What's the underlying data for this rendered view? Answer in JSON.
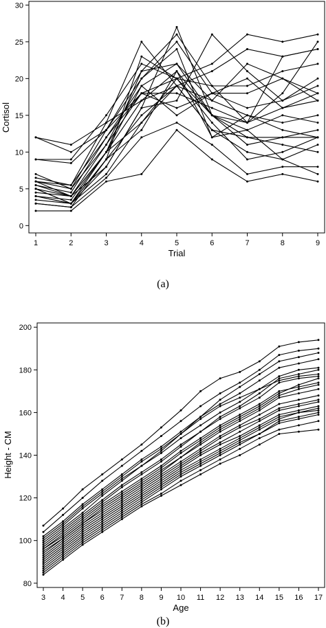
{
  "chart_data": [
    {
      "type": "line",
      "panel_label": "(a)",
      "xlabel": "Trial",
      "ylabel": "Cortisol",
      "xlim": [
        1,
        9
      ],
      "ylim": [
        -1,
        30.5
      ],
      "x": [
        1,
        2,
        3,
        4,
        5,
        6,
        7,
        8,
        9
      ],
      "xticks": [
        1,
        2,
        3,
        4,
        5,
        6,
        7,
        8,
        9
      ],
      "yticks": [
        0,
        5,
        10,
        15,
        20,
        25,
        30
      ],
      "grid": false,
      "legend": "none",
      "series": [
        {
          "values": [
            2,
            2,
            6,
            7,
            13,
            9,
            6,
            7,
            6
          ]
        },
        {
          "values": [
            3,
            2.5,
            6.5,
            12,
            14,
            11,
            7,
            8,
            8
          ]
        },
        {
          "values": [
            3.5,
            3,
            7,
            14,
            20,
            14,
            9,
            10,
            12
          ]
        },
        {
          "values": [
            4,
            3,
            9,
            15,
            19,
            13,
            10,
            9,
            11
          ]
        },
        {
          "values": [
            4,
            3.5,
            10,
            17,
            21,
            15,
            12,
            12,
            12
          ]
        },
        {
          "values": [
            5,
            4,
            11,
            18,
            18,
            16,
            14,
            16,
            18
          ]
        },
        {
          "values": [
            5.5,
            4.5,
            12,
            19,
            22,
            17,
            15,
            14,
            15
          ]
        },
        {
          "values": [
            6,
            5,
            13,
            20,
            25,
            18,
            16,
            17,
            19
          ]
        },
        {
          "values": [
            5,
            3,
            8,
            16,
            27,
            15,
            14,
            23,
            24
          ]
        },
        {
          "values": [
            6.5,
            5.5,
            14,
            25,
            19,
            13,
            12,
            11,
            10
          ]
        },
        {
          "values": [
            4.5,
            4,
            10,
            21,
            26,
            19,
            14,
            18,
            25
          ]
        },
        {
          "values": [
            3,
            2.5,
            9,
            23,
            20,
            22,
            26,
            25,
            26
          ]
        },
        {
          "values": [
            5.5,
            4,
            8,
            16,
            17,
            26,
            21,
            17,
            20
          ]
        },
        {
          "values": [
            9,
            9,
            15,
            22,
            20,
            15,
            13,
            9,
            7
          ]
        },
        {
          "values": [
            12,
            11,
            14,
            17,
            19,
            21,
            24,
            23,
            24
          ]
        },
        {
          "values": [
            12,
            10,
            13,
            18,
            16,
            18,
            18,
            20,
            17
          ]
        },
        {
          "values": [
            7,
            5,
            11,
            20,
            24,
            12,
            13,
            15,
            14
          ]
        },
        {
          "values": [
            6,
            5.5,
            12,
            18,
            20,
            19,
            19,
            21,
            22
          ]
        },
        {
          "values": [
            4,
            3,
            10,
            14,
            19,
            17,
            22,
            20,
            18
          ]
        },
        {
          "values": [
            9,
            8.5,
            13,
            21,
            22,
            15,
            11,
            12,
            13
          ]
        },
        {
          "values": [
            6,
            4,
            10,
            19,
            15,
            18,
            20,
            16,
            17
          ]
        },
        {
          "values": [
            5,
            3,
            9,
            13,
            21,
            12,
            15,
            13,
            12
          ]
        }
      ]
    },
    {
      "type": "line",
      "panel_label": "(b)",
      "xlabel": "Age",
      "ylabel": "Height - CM",
      "xlim": [
        3,
        17
      ],
      "ylim": [
        78,
        202
      ],
      "x": [
        3,
        4,
        5,
        6,
        7,
        8,
        9,
        10,
        11,
        12,
        13,
        14,
        15,
        16,
        17
      ],
      "xticks": [
        3,
        4,
        5,
        6,
        7,
        8,
        9,
        10,
        11,
        12,
        13,
        14,
        15,
        16,
        17
      ],
      "yticks": [
        80,
        100,
        120,
        140,
        160,
        180,
        200
      ],
      "grid": false,
      "legend": "none",
      "series": [
        {
          "values": [
            107,
            115,
            124,
            131,
            138,
            145,
            153,
            161,
            170,
            176,
            179,
            184,
            191,
            193,
            194
          ]
        },
        {
          "values": [
            104,
            112,
            120,
            128,
            135,
            142,
            149,
            156,
            163,
            169,
            174,
            180,
            187,
            189,
            190
          ]
        },
        {
          "values": [
            102,
            109,
            117,
            124,
            131,
            138,
            144,
            151,
            158,
            164,
            169,
            175,
            181,
            183,
            185
          ]
        },
        {
          "values": [
            100,
            107,
            115,
            122,
            129,
            135,
            141,
            148,
            154,
            160,
            165,
            171,
            177,
            180,
            181
          ]
        },
        {
          "values": [
            98,
            105,
            112,
            119,
            126,
            132,
            138,
            145,
            151,
            157,
            162,
            167,
            174,
            176,
            177
          ]
        },
        {
          "values": [
            96,
            103,
            110,
            117,
            123,
            129,
            135,
            142,
            148,
            154,
            159,
            164,
            170,
            172,
            174
          ]
        },
        {
          "values": [
            95,
            101,
            108,
            115,
            121,
            127,
            133,
            139,
            145,
            151,
            156,
            161,
            167,
            169,
            171
          ]
        },
        {
          "values": [
            93,
            100,
            107,
            113,
            119,
            125,
            131,
            137,
            143,
            149,
            154,
            159,
            164,
            166,
            168
          ]
        },
        {
          "values": [
            91,
            98,
            105,
            111,
            117,
            123,
            129,
            135,
            141,
            146,
            151,
            156,
            161,
            163,
            165
          ]
        },
        {
          "values": [
            89,
            96,
            103,
            109,
            115,
            121,
            127,
            133,
            138,
            143,
            148,
            153,
            158,
            160,
            162
          ]
        },
        {
          "values": [
            87,
            94,
            101,
            107,
            113,
            119,
            125,
            131,
            136,
            141,
            146,
            150,
            155,
            157,
            159
          ]
        },
        {
          "values": [
            85,
            92,
            99,
            105,
            111,
            117,
            122,
            128,
            133,
            138,
            143,
            148,
            152,
            154,
            156
          ]
        },
        {
          "values": [
            84,
            91,
            98,
            104,
            110,
            116,
            121,
            126,
            131,
            136,
            140,
            145,
            150,
            151,
            152
          ]
        },
        {
          "values": [
            99,
            106,
            113,
            121,
            128,
            135,
            142,
            150,
            158,
            166,
            172,
            178,
            184,
            186,
            188
          ]
        },
        {
          "values": [
            97,
            104,
            111,
            118,
            125,
            131,
            137,
            144,
            151,
            158,
            163,
            169,
            176,
            178,
            180
          ]
        },
        {
          "values": [
            92,
            99,
            106,
            112,
            118,
            124,
            130,
            136,
            142,
            148,
            153,
            157,
            162,
            164,
            166
          ]
        },
        {
          "values": [
            94,
            101,
            108,
            114,
            120,
            126,
            132,
            139,
            146,
            152,
            157,
            162,
            168,
            171,
            173
          ]
        },
        {
          "values": [
            90,
            97,
            104,
            110,
            116,
            122,
            128,
            134,
            140,
            145,
            149,
            154,
            159,
            161,
            163
          ]
        },
        {
          "values": [
            101,
            108,
            116,
            123,
            130,
            137,
            143,
            150,
            157,
            163,
            167,
            171,
            175,
            177,
            178
          ]
        },
        {
          "values": [
            88,
            95,
            102,
            108,
            114,
            120,
            126,
            132,
            137,
            142,
            147,
            152,
            157,
            160,
            161
          ]
        },
        {
          "values": [
            96,
            102,
            109,
            116,
            122,
            128,
            134,
            141,
            147,
            153,
            158,
            163,
            169,
            173,
            176
          ]
        },
        {
          "values": [
            86,
            93,
            100,
            106,
            112,
            118,
            124,
            130,
            135,
            140,
            145,
            150,
            156,
            158,
            160
          ]
        }
      ]
    }
  ]
}
